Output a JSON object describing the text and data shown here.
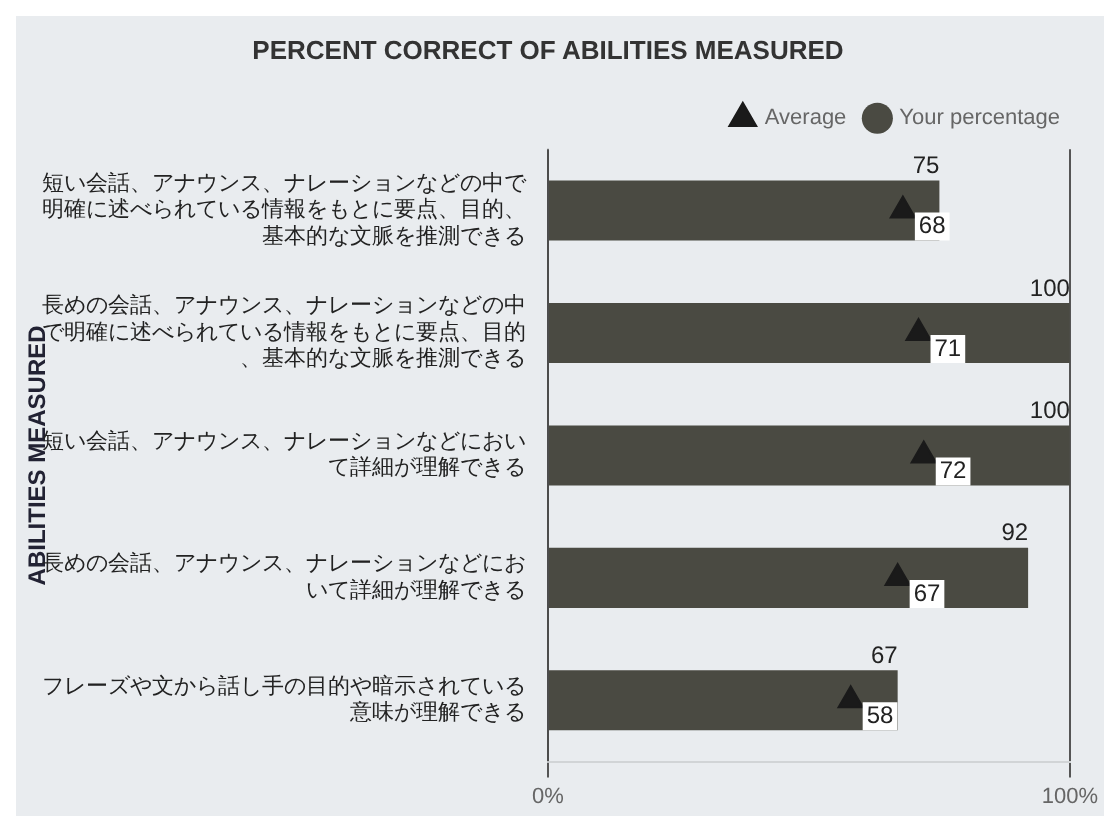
{
  "chart_data": {
    "type": "bar",
    "orientation": "horizontal",
    "title": "PERCENT CORRECT OF ABILITIES MEASURED",
    "ylabel": "ABILITIES MEASURED",
    "categories": [
      "短い会話、アナウンス、ナレーションなどの中で明確に述べられている情報をもとに要点、目的、基本的な文脈を推測できる",
      "長めの会話、アナウンス、ナレーションなどの中で明確に述べられている情報をもとに要点、目的、基本的な文脈を推測できる",
      "短い会話、アナウンス、ナレーションなどにおいて詳細が理解できる",
      "長めの会話、アナウンス、ナレーションなどにおいて詳細が理解できる",
      "フレーズや文から話し手の目的や暗示されている意味が理解できる"
    ],
    "series": [
      {
        "name": "Your percentage",
        "color": "#4a4a42",
        "values": [
          75,
          100,
          100,
          92,
          67
        ]
      },
      {
        "name": "Average",
        "type": "scatter",
        "marker": "triangle",
        "color": "#1a1a1a",
        "values": [
          68,
          71,
          72,
          67,
          58
        ]
      }
    ],
    "xlim": [
      0,
      100
    ],
    "xticks": [
      {
        "value": 0,
        "label": "0%"
      },
      {
        "value": 100,
        "label": "100%"
      }
    ],
    "grid": "x",
    "legend": "top right",
    "data_labels": true
  }
}
